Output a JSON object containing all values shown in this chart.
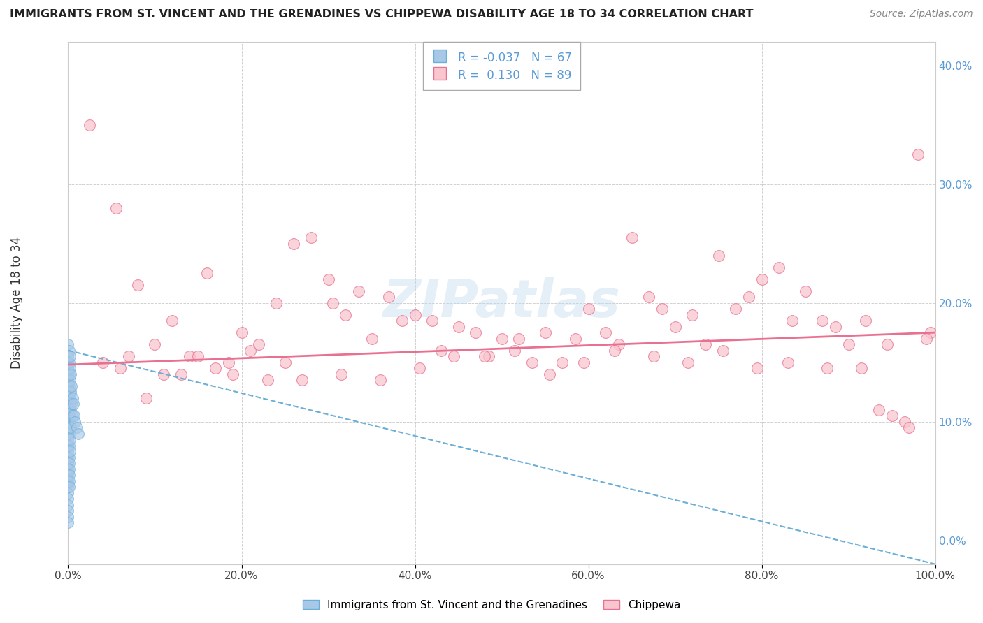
{
  "title": "IMMIGRANTS FROM ST. VINCENT AND THE GRENADINES VS CHIPPEWA DISABILITY AGE 18 TO 34 CORRELATION CHART",
  "source": "Source: ZipAtlas.com",
  "ylabel": "Disability Age 18 to 34",
  "xlim": [
    0.0,
    100.0
  ],
  "ylim": [
    -2.0,
    42.0
  ],
  "xticks": [
    0.0,
    20.0,
    40.0,
    60.0,
    80.0,
    100.0
  ],
  "xticklabels": [
    "0.0%",
    "20.0%",
    "40.0%",
    "60.0%",
    "80.0%",
    "100.0%"
  ],
  "yticks": [
    0.0,
    10.0,
    20.0,
    30.0,
    40.0
  ],
  "yticklabels": [
    "0.0%",
    "10.0%",
    "20.0%",
    "30.0%",
    "40.0%"
  ],
  "legend_r_blue": "-0.037",
  "legend_n_blue": "67",
  "legend_r_pink": "0.130",
  "legend_n_pink": "89",
  "blue_dot_color": "#a8c8e8",
  "blue_edge_color": "#6baed6",
  "pink_dot_color": "#f9c6d0",
  "pink_edge_color": "#e87090",
  "blue_line_color": "#6baed6",
  "pink_line_color": "#e87090",
  "watermark": "ZIPatlas",
  "blue_x": [
    0.0,
    0.0,
    0.0,
    0.0,
    0.0,
    0.0,
    0.0,
    0.0,
    0.0,
    0.0,
    0.0,
    0.0,
    0.0,
    0.0,
    0.0,
    0.0,
    0.0,
    0.0,
    0.0,
    0.0,
    0.0,
    0.0,
    0.0,
    0.0,
    0.0,
    0.0,
    0.0,
    0.0,
    0.0,
    0.0,
    0.1,
    0.1,
    0.1,
    0.1,
    0.1,
    0.1,
    0.1,
    0.1,
    0.1,
    0.1,
    0.1,
    0.1,
    0.1,
    0.1,
    0.1,
    0.2,
    0.2,
    0.2,
    0.2,
    0.2,
    0.2,
    0.2,
    0.2,
    0.2,
    0.3,
    0.3,
    0.3,
    0.3,
    0.4,
    0.4,
    0.5,
    0.5,
    0.6,
    0.7,
    0.8,
    1.0,
    1.2
  ],
  "blue_y": [
    16.5,
    15.5,
    15.0,
    14.5,
    14.0,
    13.5,
    13.0,
    12.5,
    12.0,
    11.5,
    11.0,
    10.5,
    10.0,
    9.5,
    9.0,
    8.5,
    8.0,
    7.5,
    7.0,
    6.5,
    6.0,
    5.5,
    5.0,
    4.5,
    4.0,
    3.5,
    3.0,
    2.5,
    2.0,
    1.5,
    16.0,
    15.0,
    14.0,
    13.0,
    12.0,
    11.0,
    10.0,
    9.0,
    8.0,
    7.0,
    6.5,
    6.0,
    5.5,
    5.0,
    4.5,
    15.5,
    14.5,
    13.5,
    12.5,
    11.5,
    10.5,
    9.5,
    8.5,
    7.5,
    14.0,
    12.5,
    11.0,
    9.5,
    13.0,
    11.5,
    12.0,
    10.5,
    11.5,
    10.5,
    10.0,
    9.5,
    9.0
  ],
  "pink_x": [
    2.5,
    5.5,
    8.0,
    10.0,
    12.0,
    14.0,
    16.0,
    18.5,
    20.0,
    22.0,
    24.0,
    26.0,
    28.0,
    30.0,
    30.5,
    32.0,
    33.5,
    35.0,
    37.0,
    38.5,
    40.0,
    42.0,
    43.0,
    45.0,
    47.0,
    48.5,
    50.0,
    52.0,
    53.5,
    55.0,
    57.0,
    58.5,
    60.0,
    62.0,
    63.5,
    65.0,
    67.0,
    68.5,
    70.0,
    72.0,
    73.5,
    75.0,
    77.0,
    78.5,
    80.0,
    82.0,
    83.5,
    85.0,
    87.0,
    88.5,
    90.0,
    92.0,
    93.5,
    95.0,
    96.5,
    98.0,
    99.5,
    4.0,
    7.0,
    11.0,
    15.0,
    19.0,
    23.0,
    27.0,
    31.5,
    36.0,
    40.5,
    44.5,
    48.0,
    51.5,
    55.5,
    59.5,
    63.0,
    67.5,
    71.5,
    75.5,
    79.5,
    83.0,
    87.5,
    91.5,
    94.5,
    97.0,
    99.0,
    6.0,
    9.0,
    13.0,
    17.0,
    21.0,
    25.0
  ],
  "pink_y": [
    35.0,
    28.0,
    21.5,
    16.5,
    18.5,
    15.5,
    22.5,
    15.0,
    17.5,
    16.5,
    20.0,
    25.0,
    25.5,
    22.0,
    20.0,
    19.0,
    21.0,
    17.0,
    20.5,
    18.5,
    19.0,
    18.5,
    16.0,
    18.0,
    17.5,
    15.5,
    17.0,
    17.0,
    15.0,
    17.5,
    15.0,
    17.0,
    19.5,
    17.5,
    16.5,
    25.5,
    20.5,
    19.5,
    18.0,
    19.0,
    16.5,
    24.0,
    19.5,
    20.5,
    22.0,
    23.0,
    18.5,
    21.0,
    18.5,
    18.0,
    16.5,
    18.5,
    11.0,
    10.5,
    10.0,
    32.5,
    17.5,
    15.0,
    15.5,
    14.0,
    15.5,
    14.0,
    13.5,
    13.5,
    14.0,
    13.5,
    14.5,
    15.5,
    15.5,
    16.0,
    14.0,
    15.0,
    16.0,
    15.5,
    15.0,
    16.0,
    14.5,
    15.0,
    14.5,
    14.5,
    16.5,
    9.5,
    17.0,
    14.5,
    12.0,
    14.0,
    14.5,
    16.0,
    15.0
  ],
  "blue_trend_x": [
    0,
    100
  ],
  "blue_trend_y": [
    16.0,
    -2.0
  ],
  "pink_trend_x": [
    0,
    100
  ],
  "pink_trend_y": [
    14.8,
    17.5
  ]
}
